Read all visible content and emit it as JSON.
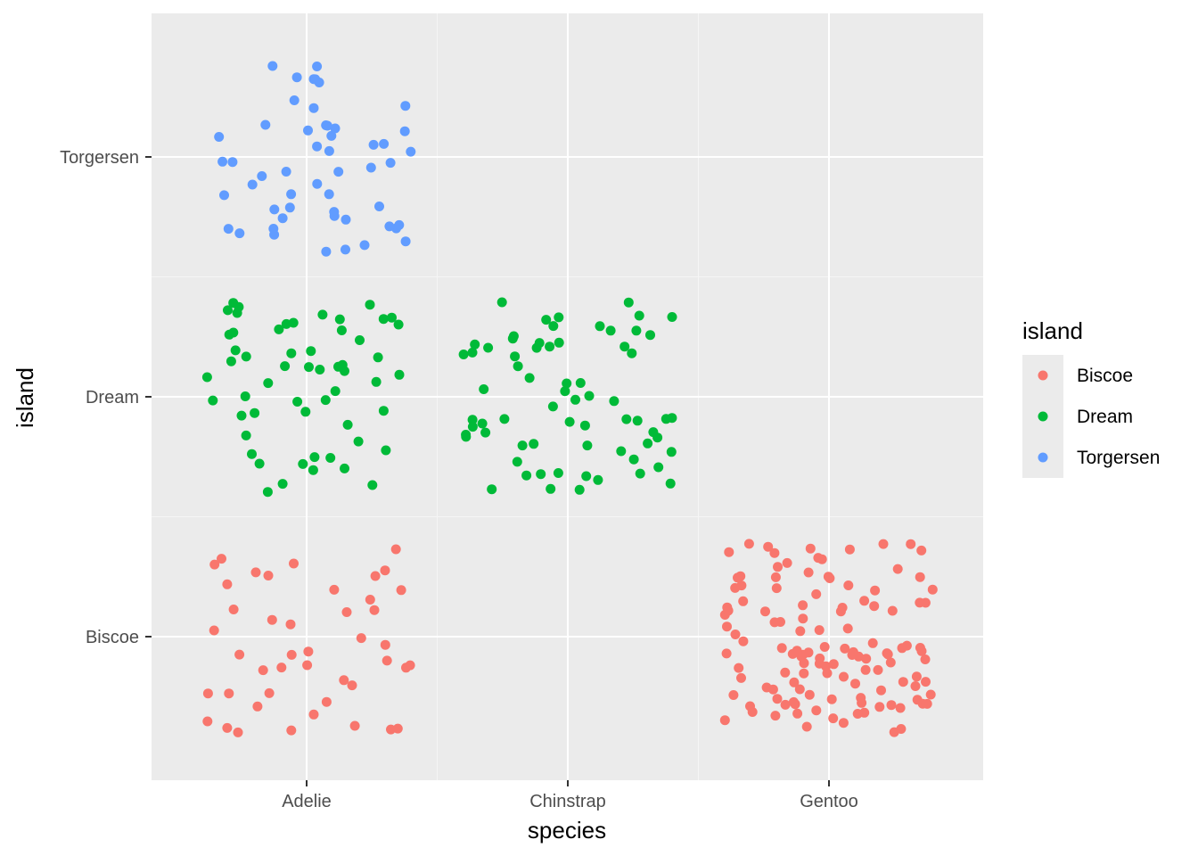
{
  "chart_data": {
    "type": "scatter",
    "title": "",
    "xlabel": "species",
    "ylabel": "island",
    "x_categories": [
      "Adelie",
      "Chinstrap",
      "Gentoo"
    ],
    "y_categories": [
      "Biscoe",
      "Dream",
      "Torgersen"
    ],
    "jitter": {
      "width": 0.4,
      "height": 0.4
    },
    "grid": true,
    "legend": {
      "title": "island",
      "position": "right",
      "entries": [
        {
          "label": "Biscoe",
          "color": "#F8766D"
        },
        {
          "label": "Dream",
          "color": "#00BA38"
        },
        {
          "label": "Torgersen",
          "color": "#619CFF"
        }
      ]
    },
    "groups": [
      {
        "species": "Adelie",
        "island": "Torgersen",
        "count": 52,
        "color": "#619CFF"
      },
      {
        "species": "Adelie",
        "island": "Dream",
        "count": 56,
        "color": "#00BA38"
      },
      {
        "species": "Adelie",
        "island": "Biscoe",
        "count": 44,
        "color": "#F8766D"
      },
      {
        "species": "Chinstrap",
        "island": "Dream",
        "count": 68,
        "color": "#00BA38"
      },
      {
        "species": "Gentoo",
        "island": "Biscoe",
        "count": 124,
        "color": "#F8766D"
      }
    ]
  }
}
